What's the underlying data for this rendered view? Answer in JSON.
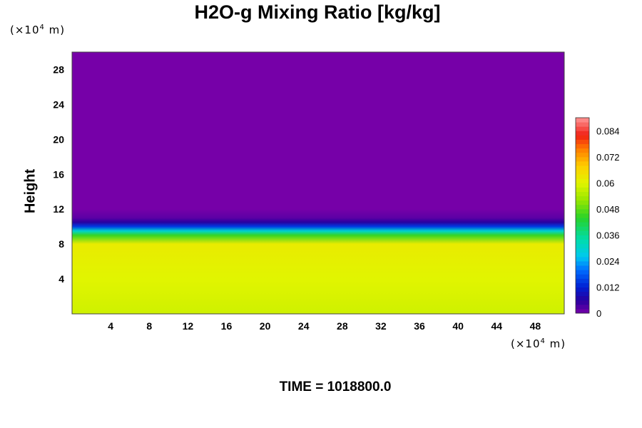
{
  "chart_data": {
    "type": "heatmap",
    "title": "H2O-g Mixing Ratio [kg/kg]",
    "ylabel": "Height",
    "y_unit_prefix": "(×10",
    "y_unit_exp": "4",
    "y_unit_suffix": " m)",
    "x_unit_prefix": "(×10",
    "x_unit_exp": "4",
    "x_unit_suffix": " m)",
    "xlim": [
      0,
      51
    ],
    "ylim": [
      0,
      30
    ],
    "xticks": [
      4,
      8,
      12,
      16,
      20,
      24,
      28,
      32,
      36,
      40,
      44,
      48
    ],
    "yticks": [
      4,
      8,
      12,
      16,
      20,
      24,
      28
    ],
    "colorbar": {
      "range": [
        0,
        0.09
      ],
      "ticks": [
        0,
        0.012,
        0.024,
        0.036,
        0.048,
        0.06,
        0.072,
        0.084
      ],
      "tick_labels": [
        "0",
        "0.012",
        "0.024",
        "0.036",
        "0.048",
        "0.06",
        "0.072",
        "0.084"
      ]
    },
    "profile": {
      "description_free": true,
      "heights": [
        0,
        2,
        4,
        6,
        8,
        9,
        9.5,
        10,
        10.5,
        11,
        12,
        30
      ],
      "values": [
        0.058,
        0.059,
        0.06,
        0.061,
        0.062,
        0.045,
        0.03,
        0.015,
        0.006,
        0.002,
        0.0,
        0.0
      ]
    },
    "time_label": "TIME = 1018800.0"
  }
}
